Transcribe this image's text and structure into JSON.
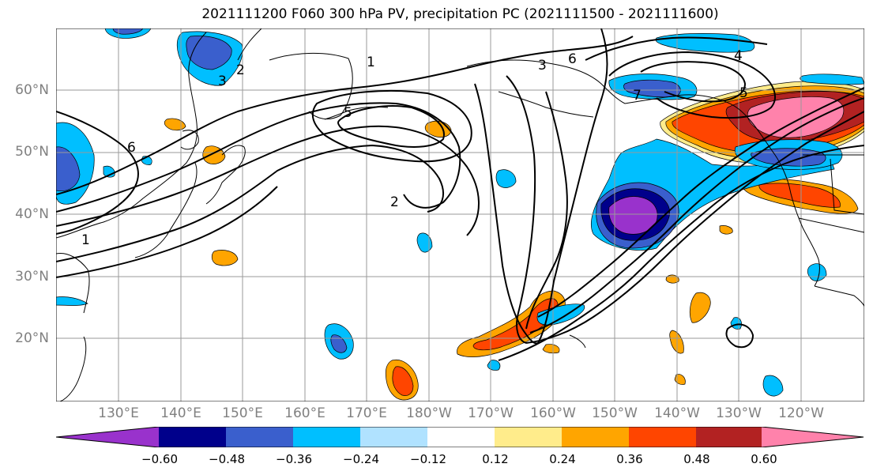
{
  "title": "2021111200 F060 300 hPa PV, precipitation PC (2021111500 - 2021111600)",
  "lat_labels": [
    "60°N",
    "50°N",
    "40°N",
    "30°N",
    "20°N"
  ],
  "lon_labels": [
    "130°E",
    "140°E",
    "150°E",
    "160°E",
    "170°E",
    "180°W",
    "170°W",
    "160°W",
    "150°W",
    "140°W",
    "130°W",
    "120°W"
  ],
  "colorbar": {
    "colors": [
      "#9932CC",
      "#00008B",
      "#3A5FCD",
      "#00BFFF",
      "#B0E2FF",
      "#FFFFFF",
      "#FFFFFF",
      "#FFEC8B",
      "#FFA500",
      "#FF4500",
      "#B22222",
      "#FF82AB"
    ],
    "tick_labels": [
      "−0.60",
      "−0.48",
      "−0.36",
      "−0.24",
      "−0.12",
      "0.12",
      "0.24",
      "0.36",
      "0.48",
      "0.60"
    ]
  },
  "contour_labels": [
    "1",
    "2",
    "3",
    "5",
    "6",
    "2",
    "3",
    "6",
    "7",
    "5",
    "4",
    "1"
  ]
}
